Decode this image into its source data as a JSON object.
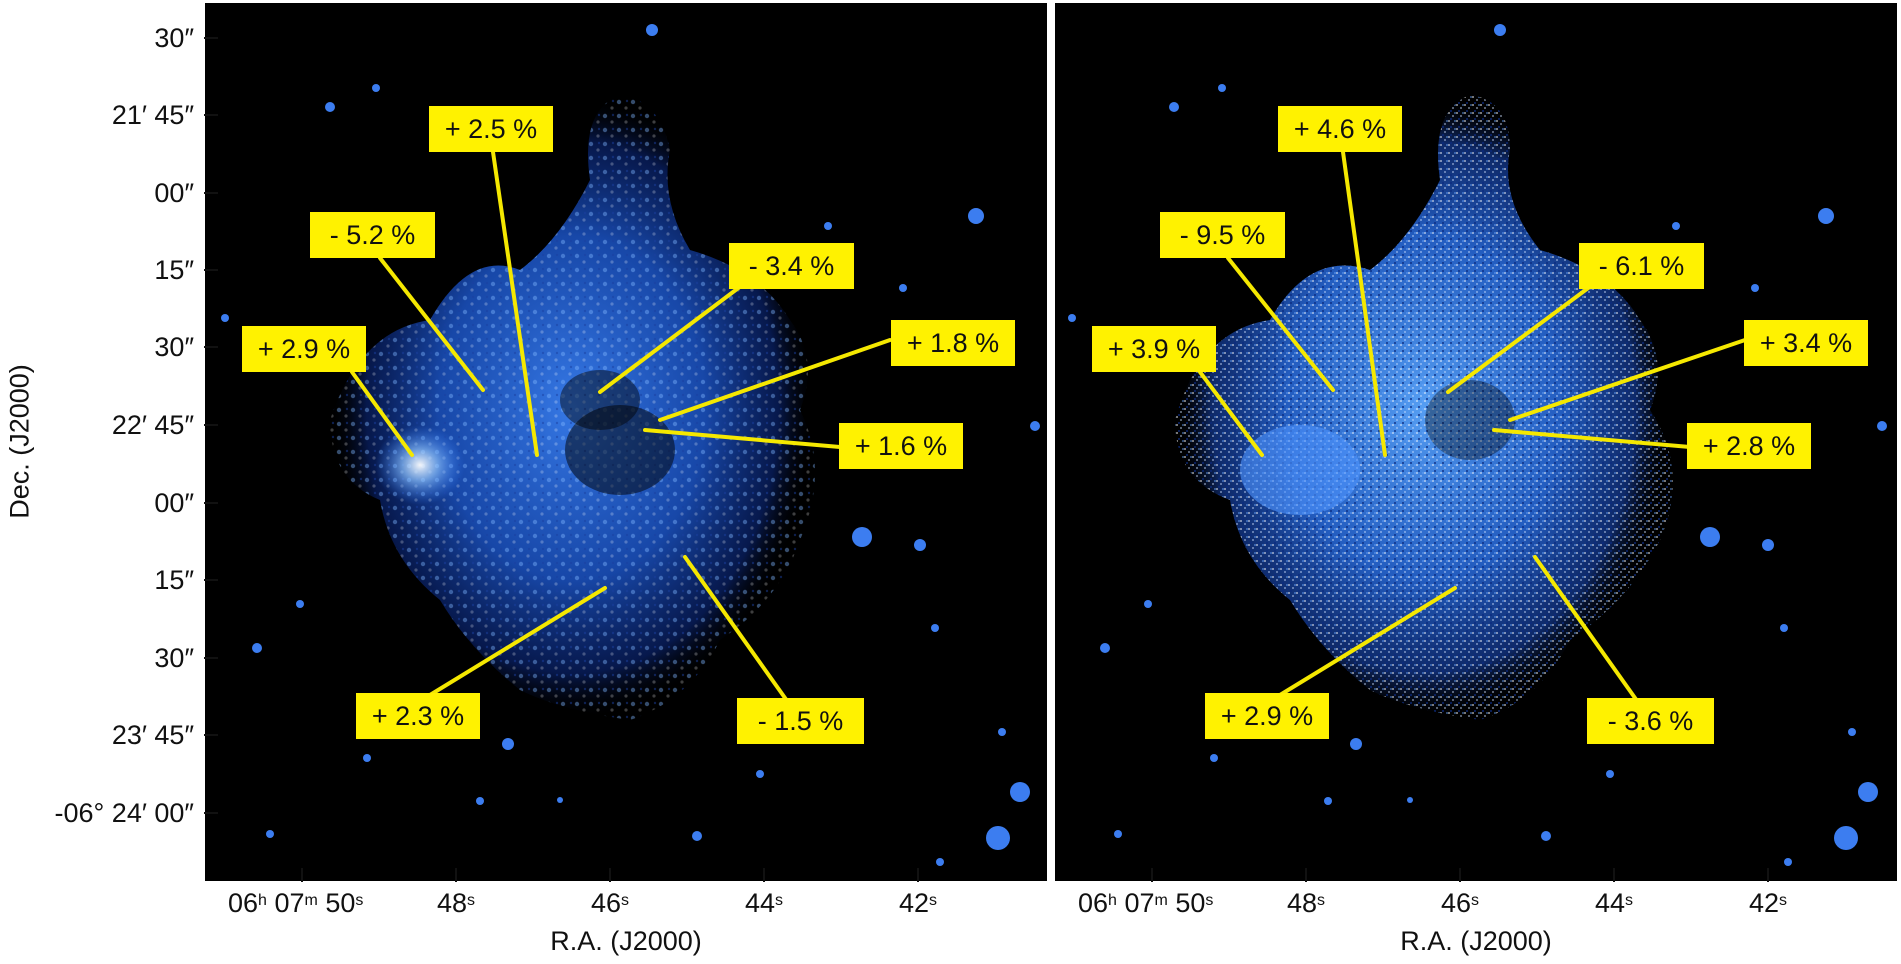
{
  "figure": {
    "y_axis_label": "Dec. (J2000)",
    "x_axis_label": "R.A. (J2000)",
    "dec_ticks": [
      "30″",
      "21′ 45″",
      "00″",
      "15″",
      "30″",
      "22′ 45″",
      "00″",
      "15″",
      "30″",
      "23′ 45″",
      "-06° 24′ 00″"
    ],
    "ra_ticks": [
      {
        "base": "06",
        "h": "h",
        "mid": " 07",
        "m": "m",
        "tail": " 50",
        "s": "s"
      },
      {
        "base": "48",
        "s": "s"
      },
      {
        "base": "46",
        "s": "s"
      },
      {
        "base": "44",
        "s": "s"
      },
      {
        "base": "42",
        "s": "s"
      }
    ],
    "colors": {
      "label_bg": "#fff200",
      "pointer_line": "#f5e800",
      "background": "#000000",
      "emission": "#2e7bff"
    }
  },
  "panels": [
    {
      "name": "left",
      "labels": [
        "+ 2.5 %",
        "- 5.2 %",
        "- 3.4 %",
        "+ 2.9 %",
        "+ 1.8 %",
        "+ 1.6 %",
        "+ 2.3 %",
        "- 1.5 %"
      ]
    },
    {
      "name": "right",
      "labels": [
        "+ 4.6 %",
        "- 9.5 %",
        "- 6.1 %",
        "+ 3.9 %",
        "+ 3.4 %",
        "+ 2.8 %",
        "+ 2.9 %",
        "- 3.6 %"
      ]
    }
  ]
}
